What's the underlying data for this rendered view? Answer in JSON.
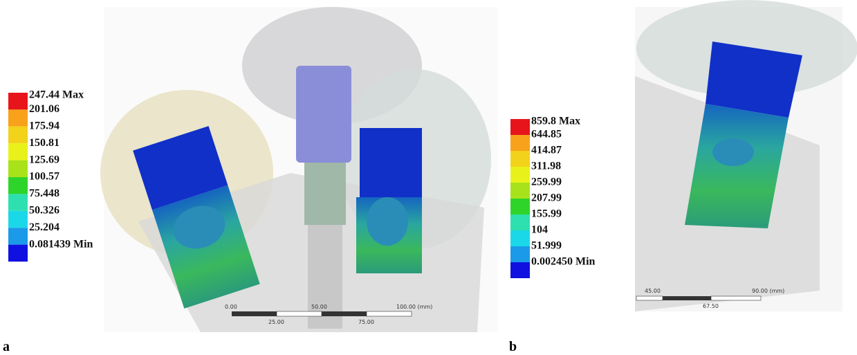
{
  "panels": [
    {
      "label": "a",
      "legend": [
        "247.44 Max",
        "201.06",
        "175.94",
        "150.81",
        "125.69",
        "100.57",
        "75.448",
        "50.326",
        "25.204",
        "0.081439 Min"
      ],
      "scale_bar": {
        "top": [
          "0.00",
          "50.00",
          "100.00 (mm)"
        ],
        "bottom": [
          "25.00",
          "75.00"
        ]
      }
    },
    {
      "label": "b",
      "legend": [
        "859.8 Max",
        "644.85",
        "414.87",
        "311.98",
        "259.99",
        "207.99",
        "155.99",
        "104",
        "51.999",
        "0.002450 Min"
      ],
      "scale_bar": {
        "top": [
          "45.00",
          "90.00 (mm)"
        ],
        "bottom": [
          "67.50"
        ]
      }
    }
  ]
}
